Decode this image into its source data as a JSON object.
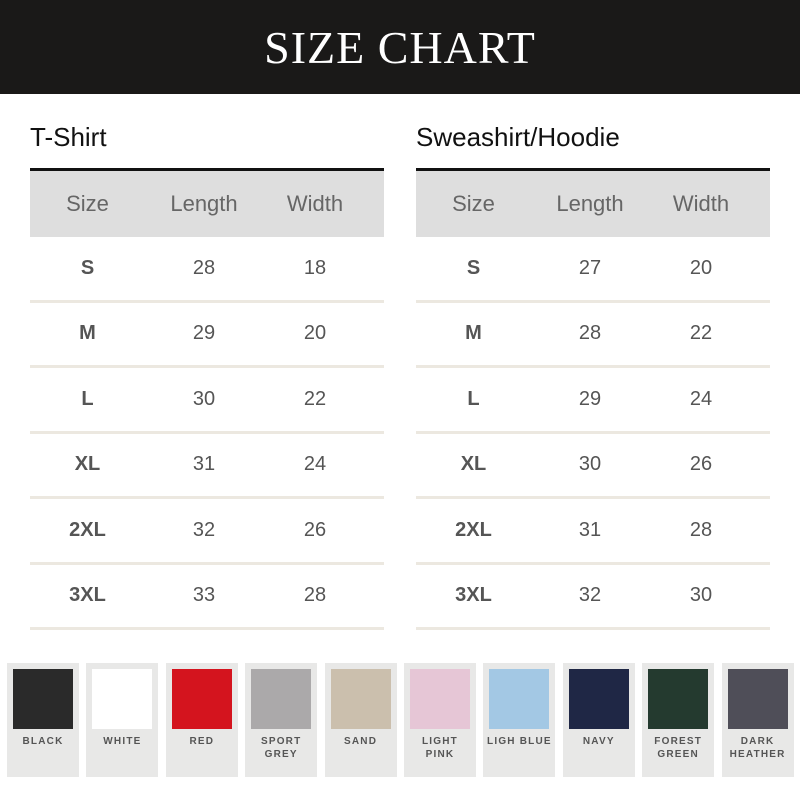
{
  "title": "SIZE CHART",
  "tables": [
    {
      "title": "T-Shirt",
      "headers": [
        "Size",
        "Length",
        "Width"
      ],
      "rows": [
        [
          "S",
          "28",
          "18"
        ],
        [
          "M",
          "29",
          "20"
        ],
        [
          "L",
          "30",
          "22"
        ],
        [
          "XL",
          "31",
          "24"
        ],
        [
          "2XL",
          "32",
          "26"
        ],
        [
          "3XL",
          "33",
          "28"
        ]
      ]
    },
    {
      "title": "Sweashirt/Hoodie",
      "headers": [
        "Size",
        "Length",
        "Width"
      ],
      "rows": [
        [
          "S",
          "27",
          "20"
        ],
        [
          "M",
          "28",
          "22"
        ],
        [
          "L",
          "29",
          "24"
        ],
        [
          "XL",
          "30",
          "26"
        ],
        [
          "2XL",
          "31",
          "28"
        ],
        [
          "3XL",
          "32",
          "30"
        ]
      ]
    }
  ],
  "colors": [
    {
      "label": "BLACK",
      "hex": "#2a2a2a"
    },
    {
      "label": "WHITE",
      "hex": "#ffffff"
    },
    {
      "label": "RED",
      "hex": "#d4141e"
    },
    {
      "label": "SPORT GREY",
      "hex": "#aba9aa"
    },
    {
      "label": "SAND",
      "hex": "#cbbfad"
    },
    {
      "label": "LIGHT PINK",
      "hex": "#e6c6d6"
    },
    {
      "label": "LIGH BLUE",
      "hex": "#a3c8e4"
    },
    {
      "label": "NAVY",
      "hex": "#1f2745"
    },
    {
      "label": "FOREST GREEN",
      "hex": "#243a2f"
    },
    {
      "label": "DARK HEATHER",
      "hex": "#4f4e58"
    }
  ]
}
